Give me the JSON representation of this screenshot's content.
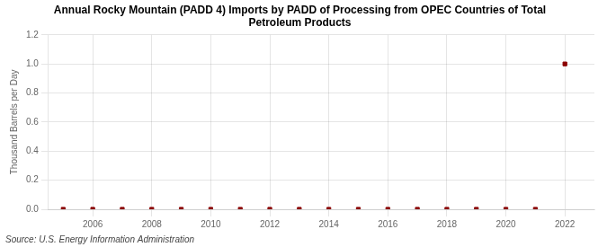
{
  "chart_data": {
    "type": "scatter",
    "title": "Annual Rocky Mountain (PADD 4) Imports by PADD of Processing from OPEC Countries of Total\nPetroleum Products",
    "ylabel": "Thousand Barrels per Day",
    "annotations": [
      "Source: U.S. Energy Information Administration"
    ],
    "x": [
      2005,
      2006,
      2007,
      2008,
      2009,
      2010,
      2011,
      2012,
      2013,
      2014,
      2015,
      2016,
      2017,
      2018,
      2019,
      2020,
      2021,
      2022
    ],
    "values": [
      0.0,
      0.0,
      0.0,
      0.0,
      0.0,
      0.0,
      0.0,
      0.0,
      0.0,
      0.0,
      0.0,
      0.0,
      0.0,
      0.0,
      0.0,
      0.0,
      0.0,
      1.0
    ],
    "color": "#8b0000",
    "marker": "square",
    "xlim": [
      2004.5,
      2023.0
    ],
    "xticks": [
      2006,
      2008,
      2010,
      2012,
      2014,
      2016,
      2018,
      2020,
      2022
    ],
    "ylim": [
      0.0,
      1.2
    ],
    "yticks": [
      {
        "value": 0,
        "label": "0.0"
      },
      0.2,
      0.4,
      0.6,
      0.8,
      {
        "value": 1,
        "label": "1.0"
      },
      1.2
    ],
    "grid": true
  }
}
